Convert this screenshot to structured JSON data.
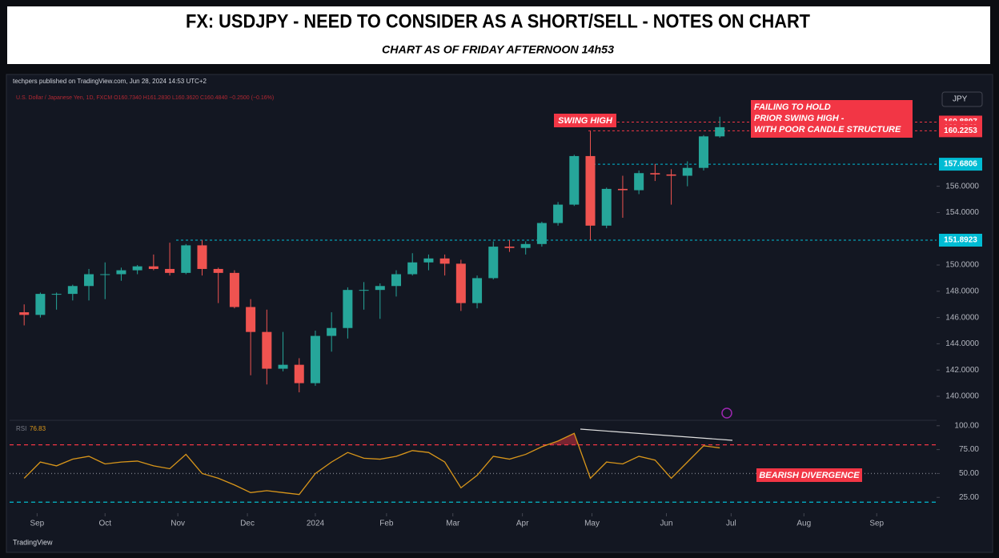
{
  "header": {
    "title": "FX: USDJPY - NEED TO CONSIDER AS A SHORT/SELL - NOTES ON CHART",
    "subtitle": "CHART AS OF FRIDAY AFTERNOON 14h53"
  },
  "chart_data": {
    "type": "candlestick",
    "published": "techpers published on TradingView.com, Jun 28, 2024 14:53 UTC+2",
    "symbol_line": "U.S. Dollar / Japanese Yen, 1D, FXCM  O160.7340 H161.2830 L160.3620 C160.4840 −0.2500 (−0.16%)",
    "currency": "JPY",
    "up_color": "#26a69a",
    "down_color": "#ef5350",
    "xlim": [
      -0.9,
      56.4
    ],
    "xticks": [
      {
        "value": 0.8,
        "label": "Sep"
      },
      {
        "value": 5.0,
        "label": "Oct"
      },
      {
        "value": 9.5,
        "label": "Nov"
      },
      {
        "value": 13.8,
        "label": "Dec"
      },
      {
        "value": 18.0,
        "label": "2024"
      },
      {
        "value": 22.4,
        "label": "Feb"
      },
      {
        "value": 26.5,
        "label": "Mar"
      },
      {
        "value": 30.8,
        "label": "Apr"
      },
      {
        "value": 35.1,
        "label": "May"
      },
      {
        "value": 39.7,
        "label": "Jun"
      },
      {
        "value": 43.7,
        "label": "Jul"
      },
      {
        "value": 48.2,
        "label": "Aug"
      },
      {
        "value": 52.7,
        "label": "Sep"
      }
    ],
    "ylim": [
      138.17,
      163.48
    ],
    "yticks": [
      {
        "value": 140,
        "label": "140.0000"
      },
      {
        "value": 142,
        "label": "142.0000"
      },
      {
        "value": 144,
        "label": "144.0000"
      },
      {
        "value": 146,
        "label": "146.0000"
      },
      {
        "value": 148,
        "label": "148.0000"
      },
      {
        "value": 150,
        "label": "150.0000"
      },
      {
        "value": 154,
        "label": "154.0000"
      },
      {
        "value": 156,
        "label": "156.0000"
      }
    ],
    "open": [
      146.4,
      146.2,
      147.8,
      147.8,
      148.4,
      149.3,
      149.3,
      149.6,
      149.9,
      149.7,
      149.4,
      151.5,
      149.7,
      149.4,
      146.8,
      144.9,
      142.1,
      142.4,
      141.0,
      144.6,
      145.2,
      148.1,
      148.1,
      148.4,
      149.3,
      150.2,
      150.5,
      150.1,
      147.1,
      149.0,
      151.4,
      151.3,
      151.6,
      153.2,
      154.6,
      158.3,
      153.0,
      155.8,
      155.7,
      157.0,
      156.9,
      156.8,
      157.4,
      159.8
    ],
    "high": [
      147.0,
      147.9,
      147.9,
      148.5,
      149.7,
      150.2,
      149.8,
      150.0,
      150.8,
      151.7,
      151.6,
      151.9,
      149.8,
      149.6,
      147.4,
      146.6,
      144.9,
      142.9,
      145.0,
      146.4,
      148.3,
      148.7,
      148.6,
      149.6,
      150.9,
      150.8,
      150.8,
      150.4,
      149.2,
      151.8,
      151.9,
      151.8,
      153.3,
      154.8,
      158.4,
      160.2,
      155.9,
      156.8,
      157.2,
      157.7,
      157.3,
      157.9,
      159.9,
      161.3
    ],
    "low": [
      145.4,
      146.0,
      146.6,
      147.3,
      147.3,
      147.4,
      148.8,
      149.3,
      149.6,
      149.2,
      149.3,
      149.2,
      147.1,
      146.7,
      141.6,
      140.9,
      141.9,
      140.3,
      140.8,
      143.4,
      144.4,
      146.6,
      145.9,
      147.6,
      149.2,
      149.6,
      149.2,
      146.5,
      146.7,
      148.9,
      151.0,
      150.8,
      151.4,
      153.0,
      154.5,
      151.9,
      152.8,
      153.6,
      155.4,
      156.4,
      154.6,
      156.0,
      157.2,
      159.7
    ],
    "close": [
      146.2,
      147.8,
      147.8,
      148.4,
      149.3,
      149.3,
      149.6,
      149.9,
      149.7,
      149.4,
      151.5,
      149.7,
      149.4,
      146.8,
      144.9,
      142.1,
      142.4,
      141.0,
      144.6,
      145.2,
      148.1,
      148.1,
      148.4,
      149.3,
      150.2,
      150.5,
      150.1,
      147.1,
      149.0,
      151.4,
      151.3,
      151.6,
      153.2,
      154.6,
      158.3,
      153.0,
      155.8,
      155.7,
      157.0,
      156.9,
      156.8,
      157.4,
      159.8,
      160.5
    ],
    "price_labels": [
      {
        "value": 160.8897,
        "color": "#f23645",
        "line": true
      },
      {
        "value": {
          "value": 160.484,
          "label": "160.4840"
        },
        "color": "#f23645",
        "line": false
      },
      {
        "value": 160.2253,
        "color": "#f23645",
        "line": true
      },
      {
        "value": 157.6806,
        "color": "#00bcd4",
        "line": true
      },
      {
        "value": 151.8923,
        "color": "#00bcd4",
        "line": true
      }
    ],
    "annotations": {
      "swing_high": "SWING HIGH",
      "failing": [
        "FAILING TO HOLD",
        "PRIOR SWING HIGH -",
        "WITH POOR CANDLE STRUCTURE"
      ],
      "divergence": "BEARISH DIVERGENCE"
    },
    "rsi": {
      "name": "RSI",
      "color": "#d9961a",
      "values": [
        45,
        62,
        58,
        65,
        68,
        60,
        62,
        63,
        58,
        55,
        70,
        50,
        45,
        38,
        30,
        32,
        30,
        28,
        50,
        62,
        72,
        66,
        65,
        68,
        74,
        72,
        62,
        35,
        48,
        68,
        65,
        70,
        78,
        84,
        92,
        45,
        62,
        60,
        68,
        64,
        45,
        62,
        79,
        76.83
      ],
      "ylim": [
        9.3,
        104
      ],
      "yticks": [
        {
          "value": 100,
          "label": "100.00"
        },
        {
          "value": 75,
          "label": "75.00"
        },
        {
          "value": 50,
          "label": "50.00"
        },
        {
          "value": 25,
          "label": "25.00"
        }
      ],
      "levels": [
        80,
        50,
        20
      ]
    },
    "footer": "TradingView"
  }
}
